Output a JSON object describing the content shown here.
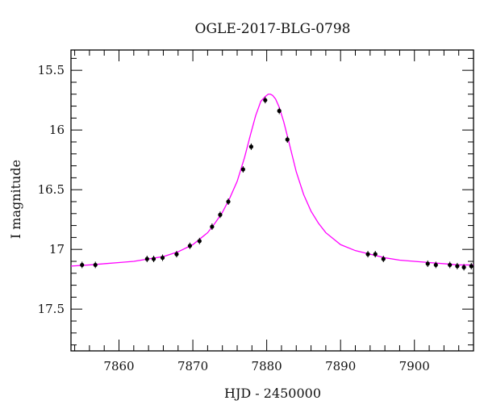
{
  "chart_data": {
    "type": "scatter",
    "title": "OGLE-2017-BLG-0798",
    "xlabel": "HJD - 2450000",
    "ylabel": "I magnitude",
    "xlim": [
      7853.5,
      7908
    ],
    "ylim": [
      15.33,
      17.85
    ],
    "y_inverted": true,
    "grid": false,
    "x_ticks": [
      7860,
      7870,
      7880,
      7890,
      7900
    ],
    "x_tick_labels": [
      "7860",
      "7870",
      "7880",
      "7890",
      "7900"
    ],
    "y_ticks": [
      15.5,
      16,
      16.5,
      17,
      17.5
    ],
    "y_tick_labels": [
      "15.5",
      "16",
      "16.5",
      "17",
      "17.5"
    ],
    "colors": {
      "model": "#ff00ff",
      "points": "#000000"
    },
    "series": [
      {
        "kind": "points",
        "x": [
          7855.0,
          7856.8,
          7863.8,
          7864.7,
          7865.9,
          7867.8,
          7869.6,
          7870.9,
          7872.6,
          7873.7,
          7874.8,
          7876.8,
          7877.9,
          7879.8,
          7881.7,
          7882.8,
          7893.7,
          7894.7,
          7895.8,
          7901.8,
          7902.9,
          7904.8,
          7905.8,
          7906.7,
          7907.7
        ],
        "y": [
          17.13,
          17.13,
          17.08,
          17.08,
          17.07,
          17.04,
          16.97,
          16.93,
          16.81,
          16.71,
          16.6,
          16.33,
          16.14,
          15.75,
          15.84,
          16.08,
          17.04,
          17.04,
          17.08,
          17.12,
          17.13,
          17.13,
          17.14,
          17.15,
          17.14
        ]
      },
      {
        "kind": "model",
        "x": [
          7853.5,
          7856,
          7858,
          7860,
          7862,
          7864,
          7866,
          7868,
          7870,
          7872,
          7873,
          7874,
          7875,
          7876,
          7877,
          7877.8,
          7878.5,
          7879.2,
          7879.8,
          7880.2,
          7880.5,
          7880.8,
          7881.2,
          7881.7,
          7882.3,
          7883,
          7884,
          7885,
          7886,
          7887,
          7888,
          7890,
          7892,
          7894,
          7896,
          7898,
          7900,
          7902,
          7904,
          7906,
          7908
        ],
        "y": [
          17.14,
          17.13,
          17.12,
          17.11,
          17.1,
          17.08,
          17.06,
          17.02,
          16.96,
          16.86,
          16.78,
          16.69,
          16.57,
          16.43,
          16.23,
          16.04,
          15.88,
          15.76,
          15.72,
          15.7,
          15.7,
          15.71,
          15.74,
          15.81,
          15.93,
          16.1,
          16.35,
          16.54,
          16.68,
          16.78,
          16.86,
          16.96,
          17.01,
          17.04,
          17.07,
          17.09,
          17.1,
          17.11,
          17.12,
          17.13,
          17.13
        ]
      }
    ]
  }
}
